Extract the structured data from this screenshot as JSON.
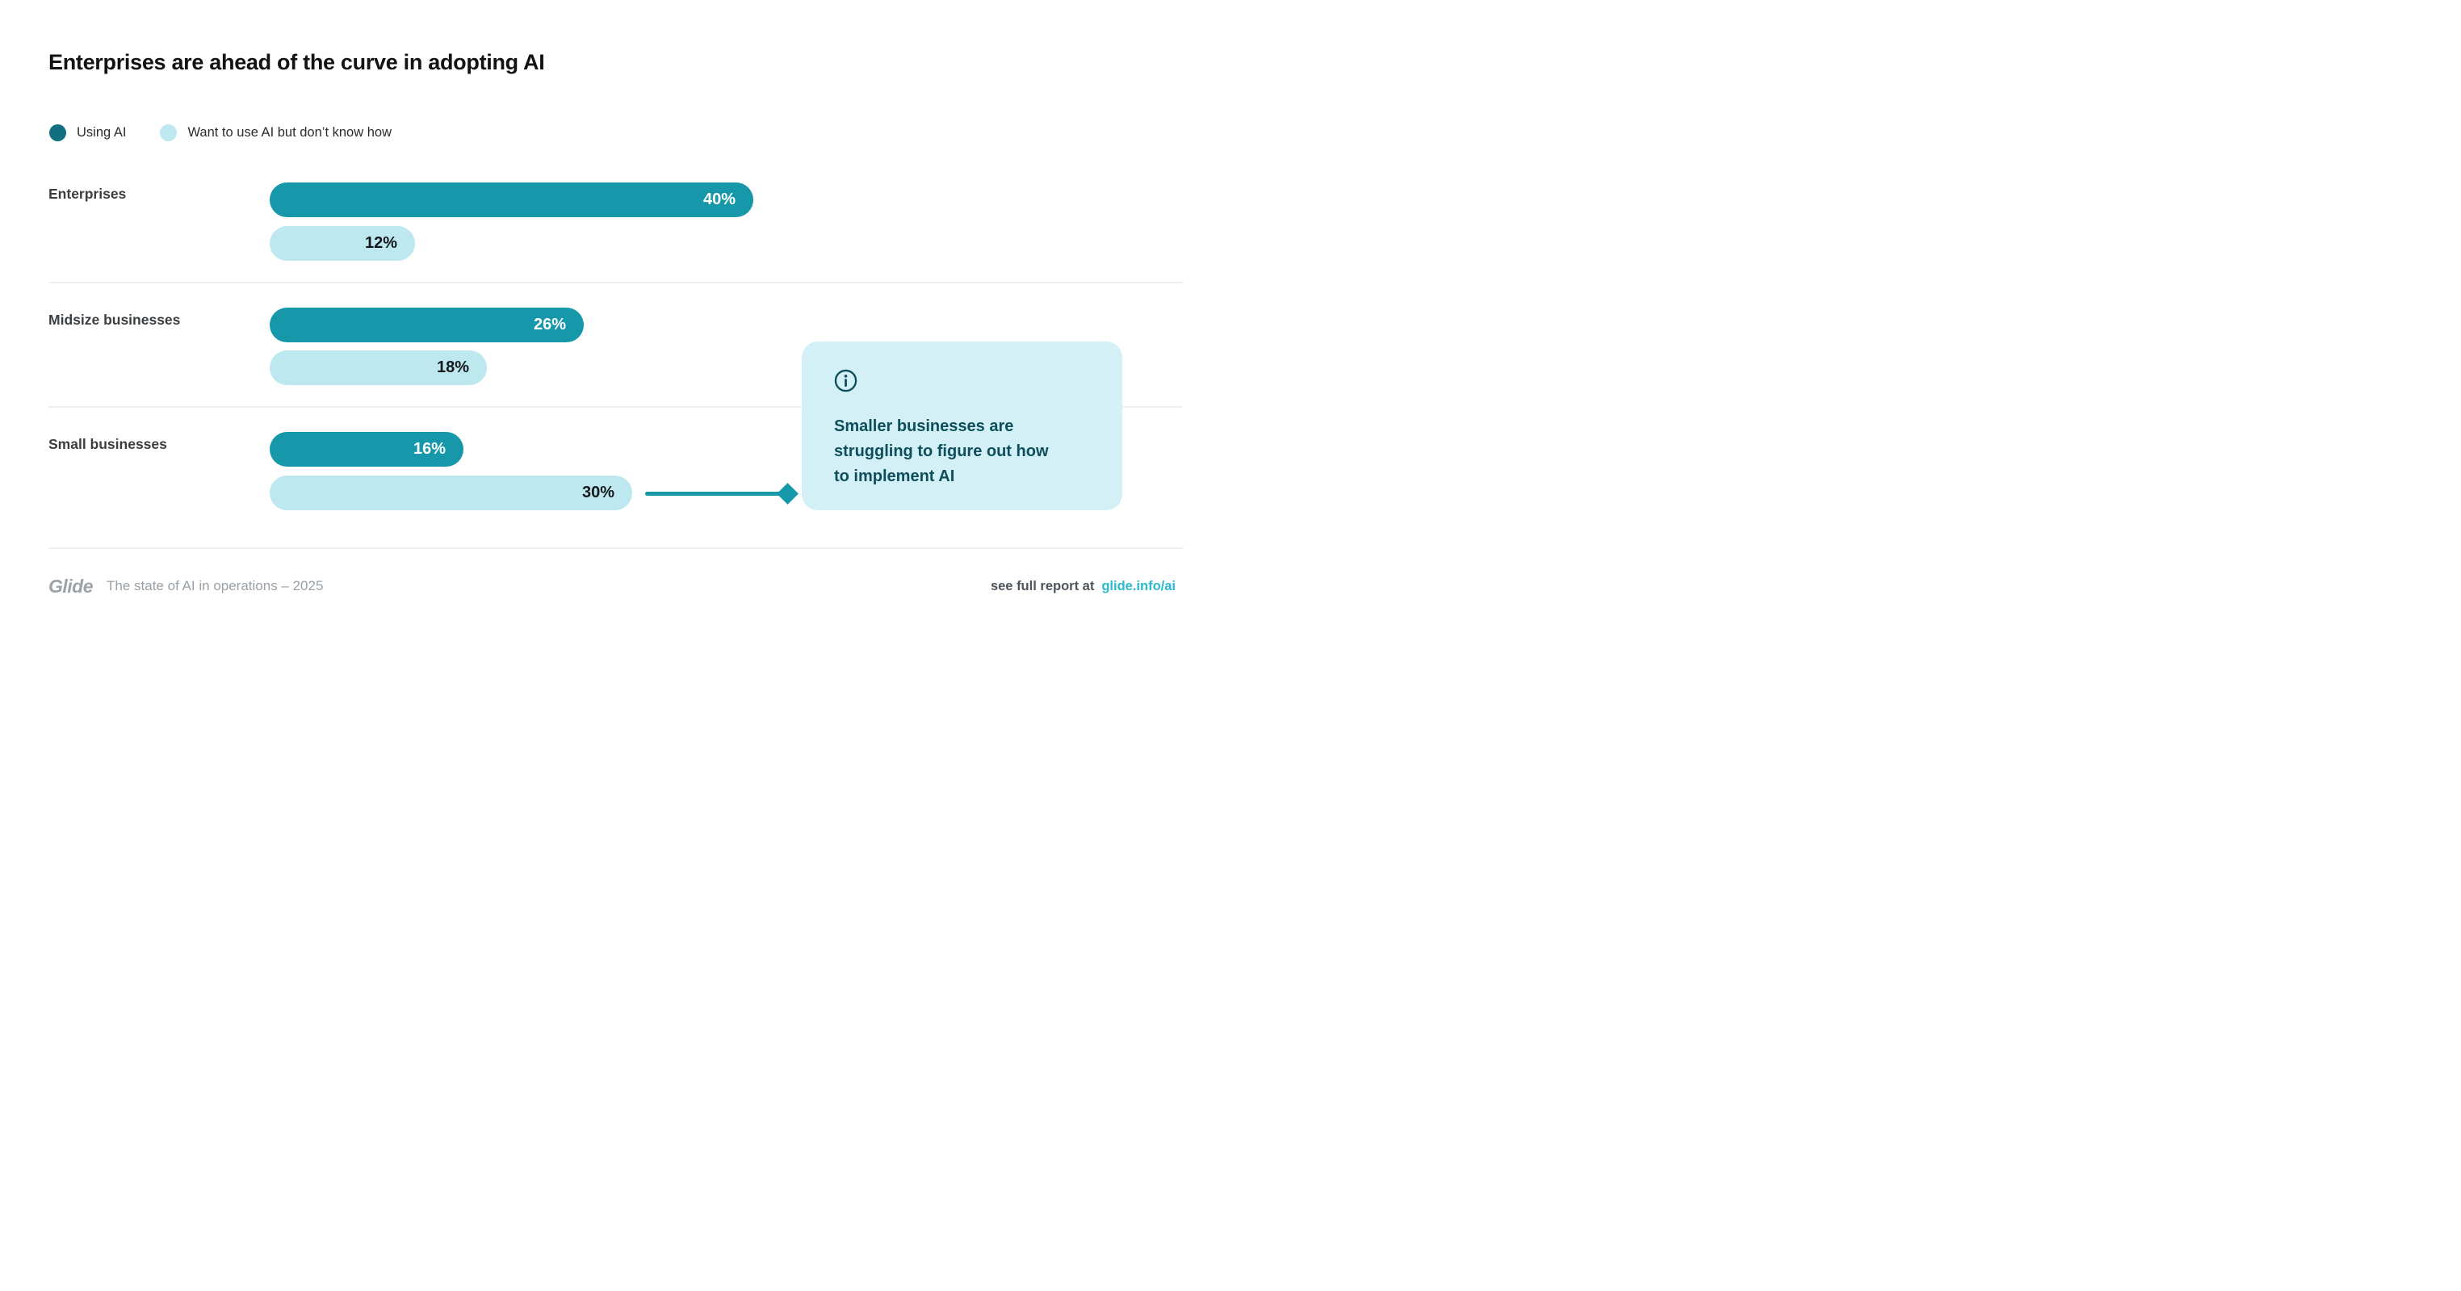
{
  "title": "Enterprises are ahead of the curve in adopting AI",
  "legend": [
    {
      "label": "Using AI",
      "color": "#116F80"
    },
    {
      "label": "Want to use AI but don’t know how",
      "color": "#BDE8F0"
    }
  ],
  "chart_data": {
    "type": "bar",
    "orientation": "horizontal",
    "categories": [
      "Enterprises",
      "Midsize businesses",
      "Small businesses"
    ],
    "series": [
      {
        "name": "Using AI",
        "color": "#1798AA",
        "values": [
          40,
          26,
          16
        ]
      },
      {
        "name": "Want to use AI but don’t know how",
        "color": "#BDE8F0",
        "values": [
          12,
          18,
          30
        ]
      }
    ],
    "value_labels": [
      [
        "40%",
        "12%"
      ],
      [
        "26%",
        "18%"
      ],
      [
        "16%",
        "30%"
      ]
    ],
    "xlim": [
      0,
      40
    ],
    "grid": "off",
    "legend_position": "top-left",
    "annotation": {
      "text": "Smaller businesses are struggling to figure out how to implement AI",
      "attached_to": {
        "category": "Small businesses",
        "series": "Want to use AI but don’t know how",
        "value": 30
      }
    }
  },
  "callout": {
    "icon": "info-icon",
    "lines": [
      "Smaller businesses are",
      "struggling to figure out how",
      "to implement AI"
    ],
    "background": "#D3F0F6",
    "text_color": "#0D4E5C"
  },
  "footer": {
    "logo": "Glide",
    "tagline": "The state of AI in operations – 2025",
    "report_text": "see full report at",
    "report_link": "glide.info/ai",
    "link_color": "#2BB9CF"
  },
  "colors": {
    "bar_primary": "#1798AA",
    "bar_secondary": "#BDE8F0",
    "legend_dot_primary": "#116F80",
    "callout_background": "#D3F0F6",
    "dark_teal_text": "#0D4E5C",
    "divider": "#EEEFF0",
    "background": "#FFFFFF"
  }
}
